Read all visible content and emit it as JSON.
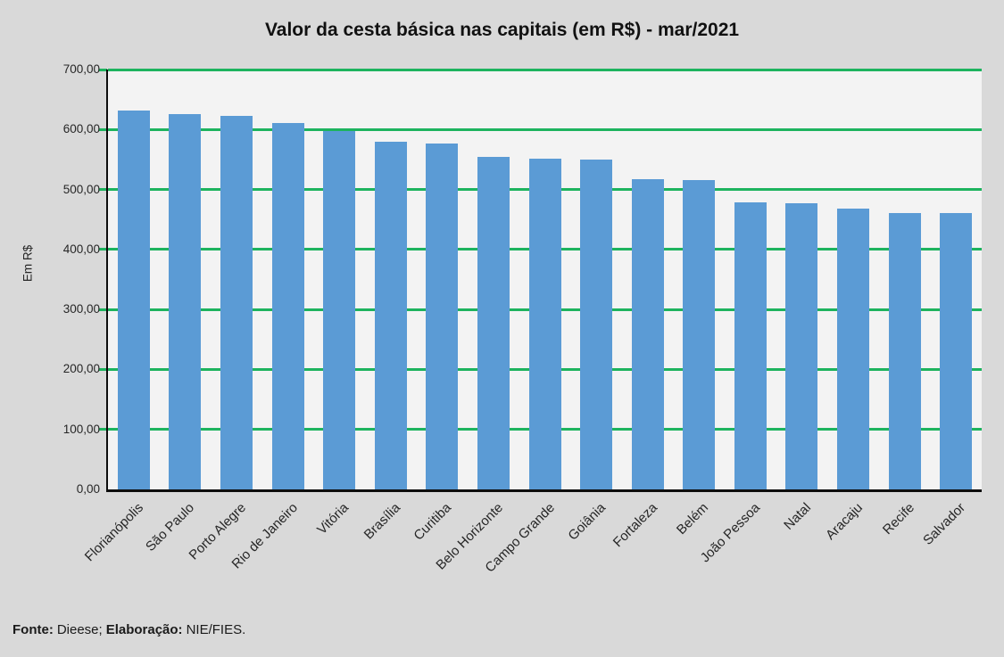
{
  "title": "Valor da cesta básica nas capitais (em R$) - mar/2021",
  "footer": {
    "fonte_label": "Fonte:",
    "fonte_value": "Dieese;",
    "elaboracao_label": "Elaboração:",
    "elaboracao_value": "NIE/FIES."
  },
  "chart_data": {
    "type": "bar",
    "title": "Valor da cesta básica nas capitais (em R$) - mar/2021",
    "categories": [
      "Florianópolis",
      "São Paulo",
      "Porto Alegre",
      "Rio de Janeiro",
      "Vitória",
      "Brasília",
      "Curitiba",
      "Belo Horizonte",
      "Campo Grande",
      "Goiânia",
      "Fortaleza",
      "Belém",
      "João Pessoa",
      "Natal",
      "Aracaju",
      "Recife",
      "Salvador"
    ],
    "values": [
      632,
      626,
      623,
      611,
      598,
      580,
      576,
      555,
      552,
      550,
      517,
      515,
      479,
      477,
      468,
      461,
      460
    ],
    "xlabel": "",
    "ylabel": "Em R$",
    "ylim": [
      0,
      700
    ],
    "ytick_step": 100,
    "ytick_labels": [
      "0,00",
      "100,00",
      "200,00",
      "300,00",
      "400,00",
      "500,00",
      "600,00",
      "700,00"
    ],
    "grid": true,
    "legend_position": "none",
    "colors": {
      "bar": "#5b9bd5",
      "gridline": "#1db35e",
      "plot_background": "#f3f3f3",
      "page_background": "#d9d9d9",
      "axis": "#0d0d0d",
      "text": "#262626"
    }
  }
}
